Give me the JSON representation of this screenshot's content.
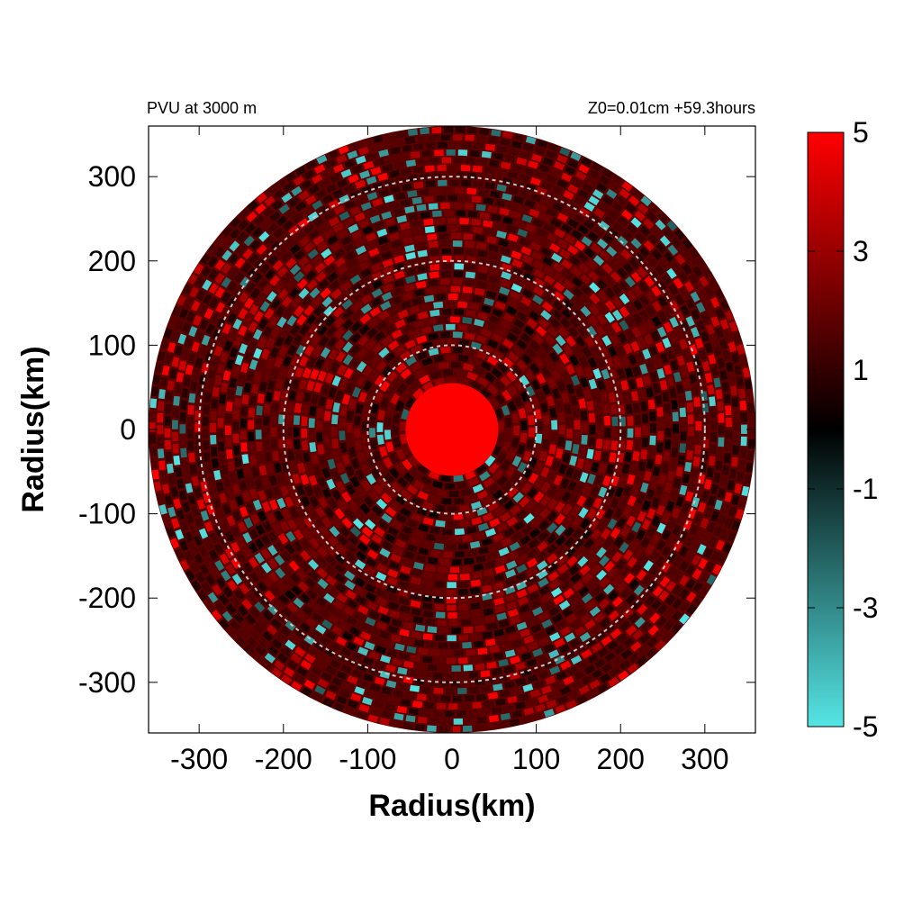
{
  "chart_data": {
    "type": "heatmap",
    "title_left": "PVU at  3000 m",
    "title_right": "Z0=0.01cm  +59.3hours",
    "xlabel": "Radius(km)",
    "ylabel": "Radius(km)",
    "xlim": [
      -360,
      360
    ],
    "ylim": [
      -360,
      360
    ],
    "x_ticks": [
      -300,
      -200,
      -100,
      0,
      100,
      200,
      300
    ],
    "y_ticks": [
      300,
      200,
      100,
      0,
      -100,
      -200,
      -300
    ],
    "x_tick_labels": [
      "-300",
      "-200",
      "-100",
      "0",
      "100",
      "200",
      "300"
    ],
    "y_tick_labels": [
      "300",
      "200",
      "100",
      "0",
      "-100",
      "-200",
      "-300"
    ],
    "domain_radius_km": 360,
    "reference_circles_km": [
      100,
      200,
      300
    ],
    "core": {
      "radius_km": 55,
      "value": 5
    },
    "colorbar": {
      "min": -5,
      "max": 5,
      "ticks": [
        5,
        3,
        1,
        -1,
        -3,
        -5
      ],
      "tick_labels": [
        "5",
        "3",
        "1",
        "-1",
        "-3",
        "-5"
      ],
      "colors": [
        "#55e5e5",
        "#000000",
        "#ff0000"
      ]
    }
  }
}
